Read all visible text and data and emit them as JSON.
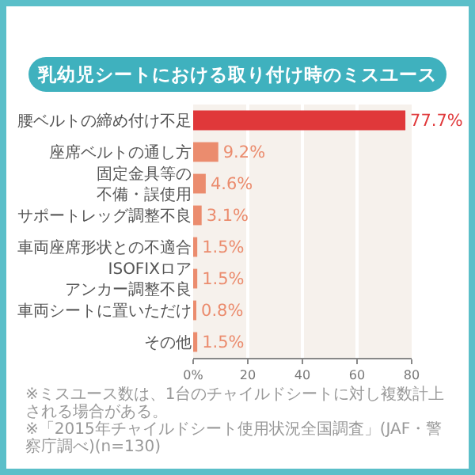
{
  "chart_data": {
    "type": "bar",
    "orientation": "horizontal",
    "title": "乳幼児シートにおける取り付け時のミスユース",
    "categories": [
      "腰ベルトの締め付け不足",
      "座席ベルトの通し方",
      "固定金具等の不備・誤使用",
      "サポートレッグ調整不良",
      "車両座席形状との不適合",
      "ISOFIXロアアンカー調整不良",
      "車両シートに置いただけ",
      "その他"
    ],
    "values": [
      77.7,
      9.2,
      4.6,
      3.1,
      1.5,
      1.5,
      0.8,
      1.5
    ],
    "colors": [
      "#e0383a",
      "#eb8c6e",
      "#eb8c6e",
      "#eb8c6e",
      "#eb8c6e",
      "#eb8c6e",
      "#eb8c6e",
      "#eb8c6e"
    ],
    "value_labels": [
      "77.7%",
      "9.2%",
      "4.6%",
      "3.1%",
      "1.5%",
      "1.5%",
      "0.8%",
      "1.5%"
    ],
    "xlim": [
      0,
      80
    ],
    "xticks": [
      {
        "value": 0,
        "label": "0%"
      },
      20,
      40,
      60,
      80
    ],
    "grid": "x",
    "annotations": [
      "※ミスユース数は、1台のチャイルドシートに対し複数計上される場合がある。",
      "※「2015年チャイルドシート使用状況全国調査」(JAF・警察庁調べ)(n=130)"
    ]
  }
}
